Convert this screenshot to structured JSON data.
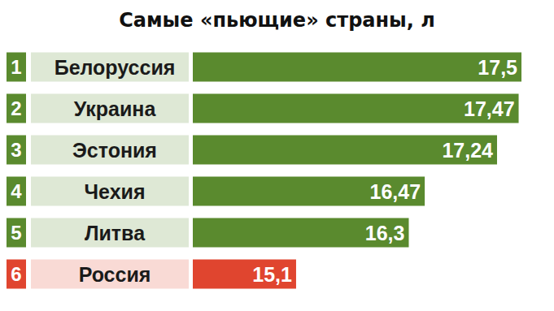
{
  "chart_data": {
    "type": "bar",
    "title": "Самые «пьющие» страны, л",
    "orientation": "horizontal",
    "ranks": [
      1,
      2,
      3,
      4,
      5,
      6
    ],
    "categories": [
      "Белоруссия",
      "Украина",
      "Эстония",
      "Чехия",
      "Литва",
      "Россия"
    ],
    "values": [
      17.5,
      17.47,
      17.24,
      16.47,
      16.3,
      15.1
    ],
    "value_labels": [
      "17,5",
      "17,47",
      "17,24",
      "16,47",
      "16,3",
      "15,1"
    ],
    "colors": [
      "#5a8a2e",
      "#5a8a2e",
      "#5a8a2e",
      "#5a8a2e",
      "#5a8a2e",
      "#e0452f"
    ],
    "xlim": [
      14,
      17.5
    ],
    "data_labels": true,
    "tick_labels": false,
    "grid": false
  }
}
